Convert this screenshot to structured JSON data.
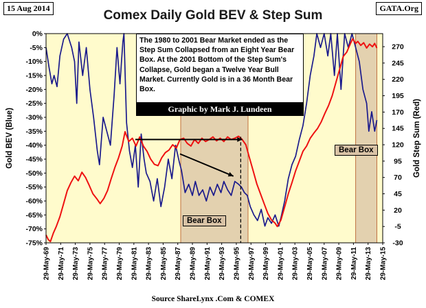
{
  "header": {
    "date": "15 Aug 2014",
    "site": "GATA.Org",
    "title": "Comex Daily Gold BEV & Step Sum"
  },
  "annotation": {
    "text": "The 1980 to 2001 Bear Market ended as the Step Sum Collapsed from an Eight Year Bear Box.  At the  2001 Bottom of the Step Sum's Collapse, Gold began a Twelve Year Bull Market.  Currently Gold is in a  36 Month Bear Box.",
    "credit": "Graphic by Mark J. Lundeen"
  },
  "bear_boxes": [
    {
      "label": "Bear Box",
      "x_start": 1987.8,
      "x_end": 1997.0
    },
    {
      "label": "Bear Box",
      "x_start": 2011.7,
      "x_end": 2014.6
    }
  ],
  "source": "Source ShareLynx .Com & COMEX",
  "colors": {
    "plot_bg": "#fffbcc",
    "bev_line": "#1a1a8c",
    "step_line": "#ee1111",
    "bear_box_fill": "#d9c3a6",
    "bear_box_border": "#c07040"
  },
  "chart_data": {
    "type": "line",
    "title": "Comex Daily Gold BEV & Step Sum",
    "xlabel": "",
    "ylabel": "Gold BEV   (Blue)",
    "y2label": "Gold Step Sum   (Red)",
    "xlim": [
      1969.4,
      2015.4
    ],
    "ylim": [
      -75,
      0
    ],
    "y2lim": [
      -30,
      290
    ],
    "x_ticks": [
      1969.4,
      1971.4,
      1973.4,
      1975.4,
      1977.4,
      1979.4,
      1981.4,
      1983.4,
      1985.4,
      1987.4,
      1989.4,
      1991.4,
      1993.4,
      1995.4,
      1997.4,
      1999.4,
      2001.4,
      2003.4,
      2005.4,
      2007.4,
      2009.4,
      2011.4,
      2013.4,
      2015.4
    ],
    "x_tick_labels": [
      "29-May-69",
      "29-May-71",
      "29-May-73",
      "29-May-75",
      "29-May-77",
      "29-May-79",
      "29-May-81",
      "29-May-83",
      "29-May-85",
      "29-May-87",
      "29-May-89",
      "29-May-91",
      "29-May-93",
      "29-May-95",
      "29-May-97",
      "29-May-99",
      "29-May-01",
      "29-May-03",
      "29-May-05",
      "29-May-07",
      "29-May-09",
      "29-May-11",
      "29-May-13",
      "29-May-15"
    ],
    "y_ticks": [
      0,
      -5,
      -10,
      -15,
      -20,
      -25,
      -30,
      -35,
      -40,
      -45,
      -50,
      -55,
      -60,
      -65,
      -70,
      -75
    ],
    "y_tick_labels": [
      "0%",
      "-5%",
      "-10%",
      "-15%",
      "-20%",
      "-25%",
      "-30%",
      "-35%",
      "-40%",
      "-45%",
      "-50%",
      "-55%",
      "-60%",
      "-65%",
      "-70%",
      "-75%"
    ],
    "y2_ticks": [
      270,
      245,
      220,
      195,
      170,
      145,
      120,
      95,
      70,
      45,
      20,
      -5,
      -30
    ],
    "y2_tick_labels": [
      "270",
      "245",
      "220",
      "195",
      "170",
      "145",
      "120",
      "95",
      "70",
      "45",
      "20",
      "-5",
      "-30"
    ],
    "series": [
      {
        "name": "Gold BEV",
        "axis": "left",
        "x": [
          1969.4,
          1969.8,
          1970.2,
          1970.5,
          1970.9,
          1971.3,
          1971.8,
          1972.3,
          1972.9,
          1973.3,
          1973.6,
          1973.9,
          1974.4,
          1974.9,
          1975.4,
          1975.9,
          1976.4,
          1976.7,
          1977.2,
          1977.7,
          1978.2,
          1978.7,
          1979.1,
          1979.5,
          1979.9,
          1980.05,
          1980.4,
          1980.8,
          1981.2,
          1981.6,
          1982.0,
          1982.4,
          1982.8,
          1983.1,
          1983.6,
          1984.1,
          1984.6,
          1985.1,
          1985.6,
          1986.1,
          1986.6,
          1987.1,
          1987.6,
          1987.9,
          1988.4,
          1988.9,
          1989.4,
          1989.8,
          1990.3,
          1990.8,
          1991.3,
          1991.8,
          1992.3,
          1992.8,
          1993.3,
          1993.7,
          1994.2,
          1994.7,
          1995.2,
          1995.7,
          1996.1,
          1996.5,
          1996.9,
          1997.3,
          1997.8,
          1998.3,
          1998.8,
          1999.3,
          1999.7,
          2000.2,
          2000.7,
          2001.2,
          2001.5,
          2002.0,
          2002.5,
          2003.0,
          2003.5,
          2004.0,
          2004.5,
          2005.0,
          2005.5,
          2006.0,
          2006.4,
          2006.9,
          2007.4,
          2007.9,
          2008.3,
          2008.8,
          2009.2,
          2009.7,
          2010.2,
          2010.7,
          2011.2,
          2011.7,
          2012.2,
          2012.7,
          2013.2,
          2013.5,
          2013.9,
          2014.3,
          2014.6
        ],
        "values": [
          -5,
          -12,
          -18,
          -15,
          -19,
          -8,
          -2,
          0,
          -5,
          -10,
          -25,
          -3,
          -15,
          -5,
          -20,
          -30,
          -42,
          -47,
          -30,
          -35,
          -40,
          -22,
          -5,
          -18,
          -3,
          0,
          -32,
          -42,
          -48,
          -40,
          -55,
          -36,
          -45,
          -50,
          -53,
          -60,
          -52,
          -62,
          -55,
          -45,
          -52,
          -40,
          -46,
          -49,
          -57,
          -54,
          -58,
          -53,
          -58,
          -56,
          -60,
          -55,
          -58,
          -54,
          -57,
          -53,
          -56,
          -58,
          -53,
          -54,
          -55,
          -57,
          -58,
          -62,
          -65,
          -67,
          -63,
          -69,
          -66,
          -68,
          -65,
          -69,
          -66,
          -60,
          -52,
          -47,
          -44,
          -38,
          -33,
          -25,
          -15,
          -8,
          0,
          -5,
          0,
          -8,
          0,
          -15,
          0,
          -20,
          0,
          -5,
          0,
          -5,
          -10,
          -20,
          -25,
          -35,
          -28,
          -35,
          -31
        ]
      },
      {
        "name": "Gold Step Sum",
        "axis": "right",
        "x": [
          1969.4,
          1969.7,
          1970.0,
          1970.4,
          1970.8,
          1971.3,
          1971.8,
          1972.3,
          1972.8,
          1973.3,
          1973.8,
          1974.3,
          1974.8,
          1975.3,
          1975.8,
          1976.3,
          1976.8,
          1977.3,
          1977.8,
          1978.3,
          1978.8,
          1979.3,
          1979.8,
          1980.2,
          1980.7,
          1981.2,
          1981.7,
          1982.2,
          1982.7,
          1983.2,
          1983.7,
          1984.2,
          1984.7,
          1985.2,
          1985.7,
          1986.2,
          1986.7,
          1987.2,
          1987.7,
          1988.2,
          1988.7,
          1989.2,
          1989.7,
          1990.2,
          1990.7,
          1991.2,
          1991.7,
          1992.2,
          1992.7,
          1993.2,
          1993.7,
          1994.2,
          1994.7,
          1995.2,
          1995.7,
          1996.2,
          1996.7,
          1997.2,
          1997.7,
          1998.2,
          1998.7,
          1999.2,
          1999.7,
          2000.2,
          2000.7,
          2001.0,
          2001.5,
          2002.0,
          2002.5,
          2003.0,
          2003.5,
          2004.0,
          2004.5,
          2005.0,
          2005.5,
          2006.0,
          2006.5,
          2007.0,
          2007.5,
          2008.0,
          2008.5,
          2009.0,
          2009.5,
          2010.0,
          2010.5,
          2011.0,
          2011.3,
          2011.7,
          2012.0,
          2012.4,
          2012.8,
          2013.2,
          2013.6,
          2014.0,
          2014.3,
          2014.6
        ],
        "values": [
          -18,
          -25,
          -28,
          -15,
          -5,
          10,
          30,
          50,
          62,
          72,
          65,
          78,
          70,
          58,
          45,
          38,
          30,
          38,
          50,
          68,
          85,
          100,
          118,
          140,
          125,
          130,
          118,
          132,
          118,
          110,
          98,
          90,
          88,
          100,
          108,
          112,
          120,
          115,
          128,
          130,
          122,
          118,
          128,
          122,
          130,
          125,
          128,
          132,
          126,
          130,
          125,
          132,
          128,
          130,
          133,
          128,
          120,
          100,
          80,
          60,
          45,
          30,
          15,
          5,
          0,
          -5,
          5,
          25,
          45,
          62,
          80,
          95,
          110,
          118,
          130,
          138,
          145,
          155,
          168,
          180,
          195,
          215,
          235,
          255,
          262,
          275,
          282,
          275,
          278,
          272,
          276,
          268,
          274,
          270,
          275,
          268
        ]
      }
    ],
    "arrows": [
      {
        "from": [
          1981.6,
          128
        ],
        "to": [
          1996.2,
          128
        ]
      },
      {
        "from": [
          1987.7,
          106
        ],
        "to": [
          1995.0,
          72
        ]
      }
    ],
    "vline_dashed_x": 1996.0
  }
}
